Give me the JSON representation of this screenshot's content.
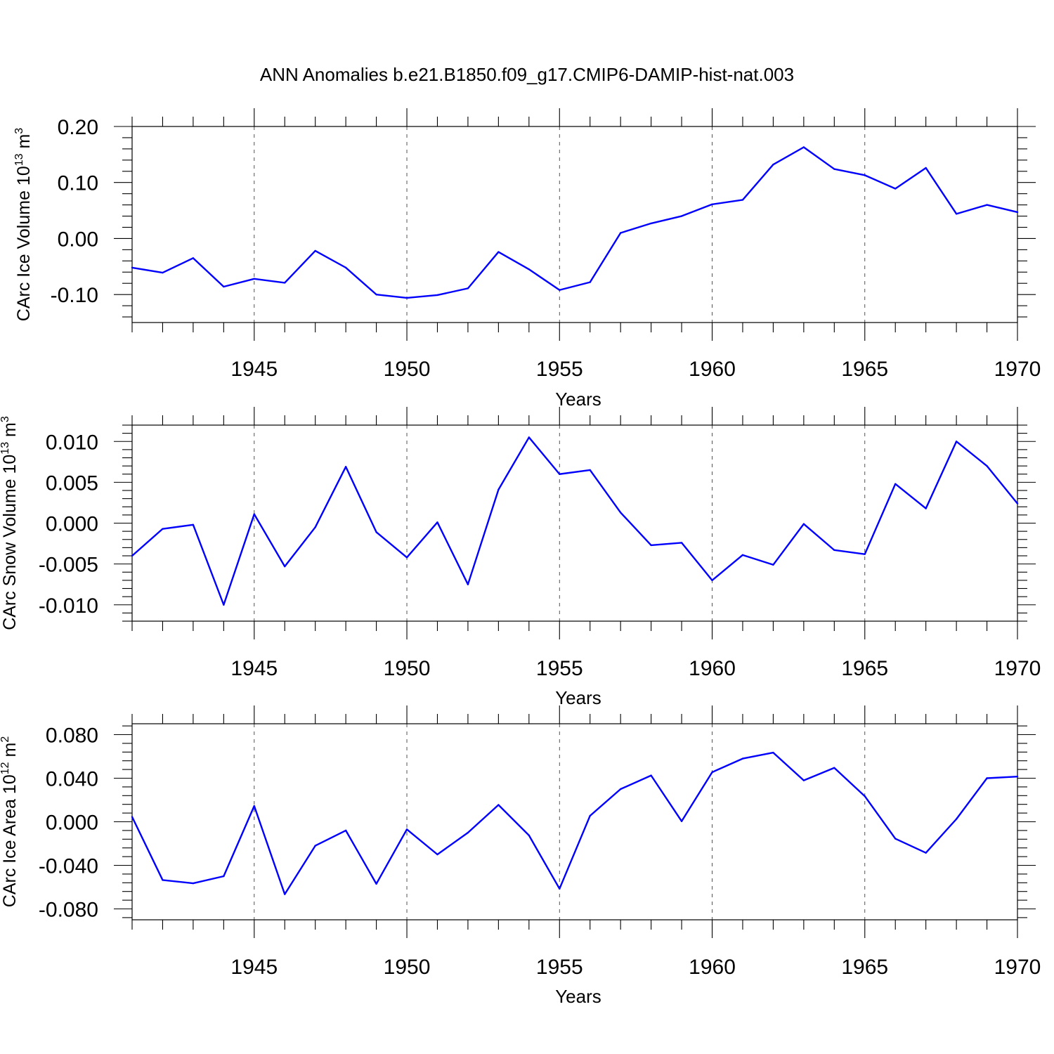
{
  "title": "ANN Anomalies b.e21.B1850.f09_g17.CMIP6-DAMIP-hist-nat.003",
  "line_color": "#0000ff",
  "chart_data": [
    {
      "type": "line",
      "ylabel": "CArc Ice Volume 10",
      "ylabel_exp": "13",
      "ylabel_unit": " m",
      "ylabel_unit_exp": "3",
      "xlabel": "Years",
      "xlim": [
        1941,
        1970
      ],
      "ylim": [
        -0.15,
        0.2
      ],
      "y_major_ticks": [
        -0.1,
        0.0,
        0.1,
        0.2
      ],
      "y_minor_step": 0.02,
      "y_tick_labels": [
        "-0.10",
        "0.00",
        "0.10",
        "0.20"
      ],
      "x_major_ticks": [
        1945,
        1950,
        1955,
        1960,
        1965,
        1970
      ],
      "x_tick_labels": [
        "1945",
        "1950",
        "1955",
        "1960",
        "1965",
        "1970"
      ],
      "grid_x": true,
      "x": [
        1941,
        1942,
        1943,
        1944,
        1945,
        1946,
        1947,
        1948,
        1949,
        1950,
        1951,
        1952,
        1953,
        1954,
        1955,
        1956,
        1957,
        1958,
        1959,
        1960,
        1961,
        1962,
        1963,
        1964,
        1965,
        1966,
        1967,
        1968,
        1969,
        1970
      ],
      "values": [
        -0.052,
        -0.061,
        -0.035,
        -0.086,
        -0.072,
        -0.079,
        -0.022,
        -0.052,
        -0.1,
        -0.106,
        -0.101,
        -0.089,
        -0.024,
        -0.055,
        -0.092,
        -0.078,
        0.01,
        0.027,
        0.04,
        0.061,
        0.069,
        0.132,
        0.163,
        0.124,
        0.113,
        0.089,
        0.126,
        0.044,
        0.06,
        0.047
      ]
    },
    {
      "type": "line",
      "ylabel": "CArc Snow Volume 10",
      "ylabel_exp": "13",
      "ylabel_unit": " m",
      "ylabel_unit_exp": "3",
      "xlabel": "Years",
      "xlim": [
        1941,
        1970
      ],
      "ylim": [
        -0.012,
        0.012
      ],
      "y_major_ticks": [
        -0.01,
        -0.005,
        0.0,
        0.005,
        0.01
      ],
      "y_minor_step": 0.001,
      "y_tick_labels": [
        "-0.010",
        "-0.005",
        "0.000",
        "0.005",
        "0.010"
      ],
      "x_major_ticks": [
        1945,
        1950,
        1955,
        1960,
        1965,
        1970
      ],
      "x_tick_labels": [
        "1945",
        "1950",
        "1955",
        "1960",
        "1965",
        "1970"
      ],
      "grid_x": true,
      "x": [
        1941,
        1942,
        1943,
        1944,
        1945,
        1946,
        1947,
        1948,
        1949,
        1950,
        1951,
        1952,
        1953,
        1954,
        1955,
        1956,
        1957,
        1958,
        1959,
        1960,
        1961,
        1962,
        1963,
        1964,
        1965,
        1966,
        1967,
        1968,
        1969,
        1970
      ],
      "values": [
        -0.004,
        -0.0007,
        -0.0002,
        -0.01,
        0.0011,
        -0.0053,
        -0.0005,
        0.0069,
        -0.0011,
        -0.0042,
        0.0001,
        -0.0075,
        0.0041,
        0.0105,
        0.006,
        0.0065,
        0.0013,
        -0.0027,
        -0.0024,
        -0.007,
        -0.0039,
        -0.0051,
        -0.0001,
        -0.0033,
        -0.0038,
        0.0048,
        0.0018,
        0.01,
        0.007,
        0.0024
      ]
    },
    {
      "type": "line",
      "ylabel": "CArc Ice Area 10",
      "ylabel_exp": "12",
      "ylabel_unit": " m",
      "ylabel_unit_exp": "2",
      "xlabel": "Years",
      "xlim": [
        1941,
        1970
      ],
      "ylim": [
        -0.09,
        0.09
      ],
      "y_major_ticks": [
        -0.08,
        -0.04,
        0.0,
        0.04,
        0.08
      ],
      "y_minor_step": 0.008,
      "y_tick_labels": [
        "-0.080",
        "-0.040",
        "0.000",
        "0.040",
        "0.080"
      ],
      "x_major_ticks": [
        1945,
        1950,
        1955,
        1960,
        1965,
        1970
      ],
      "x_tick_labels": [
        "1945",
        "1950",
        "1955",
        "1960",
        "1965",
        "1970"
      ],
      "grid_x": true,
      "x": [
        1941,
        1942,
        1943,
        1944,
        1945,
        1946,
        1947,
        1948,
        1949,
        1950,
        1951,
        1952,
        1953,
        1954,
        1955,
        1956,
        1957,
        1958,
        1959,
        1960,
        1961,
        1962,
        1963,
        1964,
        1965,
        1966,
        1967,
        1968,
        1969,
        1970
      ],
      "values": [
        0.0045,
        -0.0535,
        -0.0565,
        -0.05,
        0.0145,
        -0.0665,
        -0.022,
        -0.008,
        -0.057,
        -0.007,
        -0.03,
        -0.01,
        0.0155,
        -0.0125,
        -0.0615,
        0.0055,
        0.03,
        0.0425,
        0.0005,
        0.0455,
        0.058,
        0.0635,
        0.038,
        0.0495,
        0.0235,
        -0.0155,
        -0.0285,
        0.0025,
        0.04,
        0.0415
      ]
    }
  ]
}
